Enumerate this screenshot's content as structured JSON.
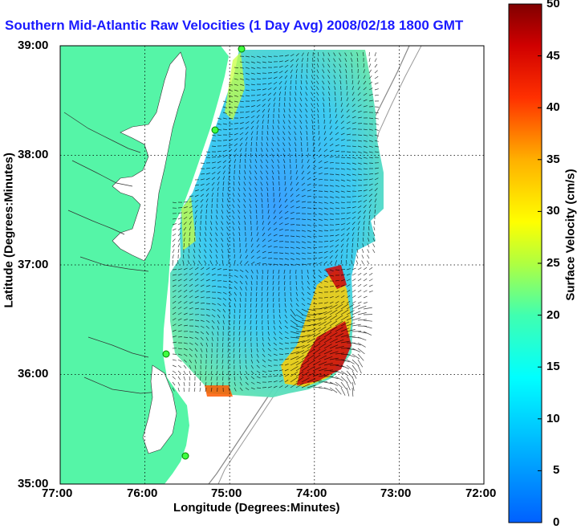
{
  "title": "Southern Mid-Atlantic Raw Velocities (1 Day Avg) 2008/02/18 1800 GMT",
  "axes": {
    "xlabel": "Longitude (Degrees:Minutes)",
    "ylabel": "Latitude (Degrees:Minutes)",
    "x_ticks": [
      "77:00",
      "76:00",
      "75:00",
      "74:00",
      "73:00",
      "72:00"
    ],
    "y_ticks": [
      "39:00",
      "38:00",
      "37:00",
      "36:00",
      "35:00"
    ]
  },
  "colorbar": {
    "label": "Surface Velocity (cm/s)",
    "ticks": [
      "50",
      "45",
      "40",
      "35",
      "30",
      "25",
      "20",
      "15",
      "10",
      "5",
      "0"
    ]
  },
  "colors": {
    "land": "#55f5a7",
    "title_blue": "#1a1aff",
    "low": "#0080ff",
    "high": "#800000"
  },
  "stations": [
    "station-north",
    "station-cape-may",
    "station-duck",
    "station-hatteras"
  ]
}
